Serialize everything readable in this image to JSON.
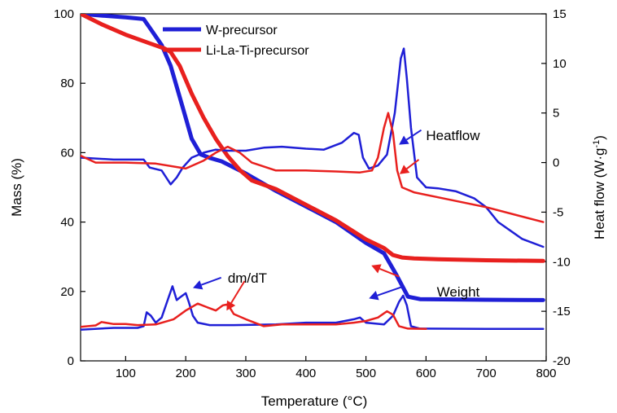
{
  "chart_data": {
    "type": "line",
    "xlabel": "Temperature (",
    "xlabel_unit": "°C",
    "xlabel_close": ")",
    "ylabel": "Mass (%)",
    "y2label": "Heat flow (W·g",
    "y2label_sup": "-1",
    "y2label_close": ")",
    "xlim": [
      25,
      800
    ],
    "ylim": [
      0,
      100
    ],
    "y2lim": [
      -20,
      15
    ],
    "xticks": [
      100,
      200,
      300,
      400,
      500,
      600,
      700,
      800
    ],
    "yticks": [
      0,
      20,
      40,
      60,
      80,
      100
    ],
    "y2ticks": [
      -20,
      -15,
      -10,
      -5,
      0,
      5,
      10,
      15
    ],
    "legend": [
      {
        "name": "W-precursor",
        "color": "#1f1fd6"
      },
      {
        "name": "Li-La-Ti-precursor",
        "color": "#e8201e"
      }
    ],
    "annotations": [
      {
        "text": "Heatflow",
        "x": 600,
        "y": 65
      },
      {
        "text": "dm/dT",
        "x": 270,
        "y": 24
      },
      {
        "text": "Weight",
        "x": 618,
        "y": 20
      }
    ],
    "arrows": [
      {
        "color": "#1f1fd6",
        "from": [
          592,
          66.5
        ],
        "to": [
          555,
          62.3
        ]
      },
      {
        "color": "#e8201e",
        "from": [
          588,
          58
        ],
        "to": [
          556,
          53.8
        ]
      },
      {
        "color": "#1f1fd6",
        "from": [
          259,
          24
        ],
        "to": [
          212,
          21
        ]
      },
      {
        "color": "#e8201e",
        "from": [
          298,
          23
        ],
        "to": [
          268,
          14.5
        ]
      },
      {
        "color": "#e8201e",
        "from": [
          555,
          24.3
        ],
        "to": [
          509,
          27.5
        ]
      },
      {
        "color": "#1f1fd6",
        "from": [
          563,
          21.5
        ],
        "to": [
          505,
          18
        ]
      }
    ],
    "series": [
      {
        "name": "W-precursor",
        "group": "weight",
        "axis": "left",
        "color": "#1f1fd6",
        "width": 5,
        "x": [
          25,
          60,
          100,
          130,
          140,
          160,
          175,
          190,
          200,
          210,
          225,
          240,
          260,
          300,
          350,
          400,
          450,
          500,
          530,
          550,
          570,
          590,
          700,
          795
        ],
        "y": [
          100,
          99.5,
          99,
          98.5,
          96,
          91,
          85,
          76,
          70,
          64,
          59.5,
          58.5,
          57.5,
          54,
          49,
          44.5,
          40,
          34,
          31,
          25,
          18.5,
          17.8,
          17.6,
          17.5
        ]
      },
      {
        "name": "Li-La-Ti-precursor",
        "group": "weight",
        "axis": "left",
        "color": "#e8201e",
        "width": 5,
        "x": [
          25,
          60,
          100,
          140,
          165,
          175,
          190,
          210,
          230,
          250,
          270,
          290,
          310,
          350,
          400,
          450,
          500,
          530,
          545,
          560,
          580,
          620,
          700,
          795
        ],
        "y": [
          100,
          97,
          94,
          91.5,
          90,
          89,
          85,
          77,
          70,
          64,
          59,
          55,
          52,
          49.5,
          45,
          40.5,
          35,
          32.5,
          30.5,
          29.8,
          29.5,
          29.3,
          29,
          28.8
        ]
      },
      {
        "name": "W-precursor",
        "group": "heatflow",
        "axis": "right",
        "color": "#1f1fd6",
        "width": 2.5,
        "x": [
          25,
          80,
          130,
          140,
          160,
          175,
          185,
          195,
          210,
          230,
          250,
          270,
          300,
          330,
          360,
          400,
          430,
          460,
          480,
          488,
          495,
          505,
          520,
          535,
          548,
          558,
          563,
          568,
          575,
          585,
          600,
          620,
          650,
          680,
          700,
          720,
          760,
          795
        ],
        "y": [
          0.5,
          0.3,
          0.3,
          -0.5,
          -0.8,
          -2.2,
          -1.5,
          -0.5,
          0.5,
          1.0,
          1.3,
          1.2,
          1.2,
          1.5,
          1.6,
          1.4,
          1.3,
          2.0,
          3.0,
          2.8,
          0.5,
          -0.6,
          -0.3,
          0.8,
          5.0,
          10.5,
          11.5,
          8.5,
          3.5,
          -1.5,
          -2.5,
          -2.6,
          -2.9,
          -3.6,
          -4.5,
          -6.0,
          -7.7,
          -8.5
        ]
      },
      {
        "name": "Li-La-Ti-precursor",
        "group": "heatflow",
        "axis": "right",
        "color": "#e8201e",
        "width": 2.5,
        "x": [
          25,
          50,
          100,
          150,
          200,
          230,
          250,
          270,
          290,
          310,
          350,
          400,
          450,
          490,
          510,
          520,
          530,
          537,
          545,
          552,
          560,
          580,
          620,
          700,
          795
        ],
        "y": [
          0.7,
          0.0,
          0.0,
          -0.1,
          -0.6,
          0.2,
          1.0,
          1.6,
          1.0,
          0.0,
          -0.8,
          -0.8,
          -0.9,
          -1.0,
          -0.8,
          0.5,
          3.5,
          5.0,
          3.0,
          -0.8,
          -2.5,
          -3.0,
          -3.5,
          -4.5,
          -6.0
        ]
      },
      {
        "name": "W-precursor",
        "group": "dmdT",
        "axis": "left",
        "color": "#1f1fd6",
        "width": 2.5,
        "x": [
          25,
          80,
          120,
          130,
          135,
          142,
          150,
          160,
          170,
          178,
          185,
          192,
          200,
          205,
          212,
          220,
          240,
          280,
          350,
          400,
          450,
          480,
          490,
          500,
          530,
          545,
          555,
          562,
          568,
          575,
          590,
          700,
          795
        ],
        "y": [
          9,
          9.5,
          9.5,
          10,
          14,
          13,
          11,
          12.5,
          17.5,
          21.5,
          17.5,
          18.5,
          19.5,
          17,
          13,
          11,
          10.3,
          10.3,
          10.5,
          11,
          11,
          12,
          12.5,
          11,
          10.5,
          13,
          17,
          18.8,
          16,
          10,
          9.3,
          9.2,
          9.2
        ]
      },
      {
        "name": "Li-La-Ti-precursor",
        "group": "dmdT",
        "axis": "left",
        "color": "#e8201e",
        "width": 2.5,
        "x": [
          25,
          50,
          60,
          80,
          100,
          120,
          150,
          180,
          200,
          220,
          235,
          250,
          262,
          270,
          280,
          300,
          330,
          360,
          400,
          450,
          480,
          500,
          520,
          535,
          545,
          555,
          570,
          600
        ],
        "y": [
          9.8,
          10.2,
          11.2,
          10.6,
          10.6,
          10.3,
          10.5,
          12,
          14.5,
          16.5,
          15.5,
          14.5,
          16,
          16.3,
          13.5,
          12,
          10,
          10.5,
          10.5,
          10.5,
          11,
          11.5,
          12.5,
          14.3,
          13.3,
          10,
          9.3,
          9.2
        ]
      }
    ]
  }
}
